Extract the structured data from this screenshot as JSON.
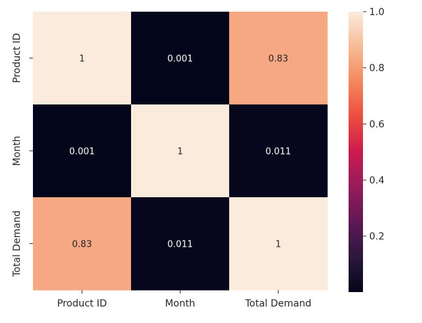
{
  "chart_data": {
    "type": "heatmap",
    "title": "",
    "xlabel": "",
    "ylabel": "",
    "x_categories": [
      "Product ID",
      "Month",
      "Total Demand"
    ],
    "y_categories": [
      "Product ID",
      "Month",
      "Total Demand"
    ],
    "values": [
      [
        1,
        0.001,
        0.83
      ],
      [
        0.001,
        1,
        0.011
      ],
      [
        0.83,
        0.011,
        1
      ]
    ],
    "annotations": [
      [
        "1",
        "0.001",
        "0.83"
      ],
      [
        "0.001",
        "1",
        "0.011"
      ],
      [
        "0.83",
        "0.011",
        "1"
      ]
    ],
    "colorbar": {
      "range": [
        0.001,
        1.0
      ],
      "ticks": [
        0.2,
        0.4,
        0.6,
        0.8,
        1.0
      ],
      "tick_labels": [
        "0.2",
        "0.4",
        "0.6",
        "0.8",
        "1.0"
      ],
      "colormap": "rocket"
    },
    "annotation_colors": {
      "on_light": "#262626",
      "on_dark": "#ffffff"
    },
    "grid": false
  }
}
